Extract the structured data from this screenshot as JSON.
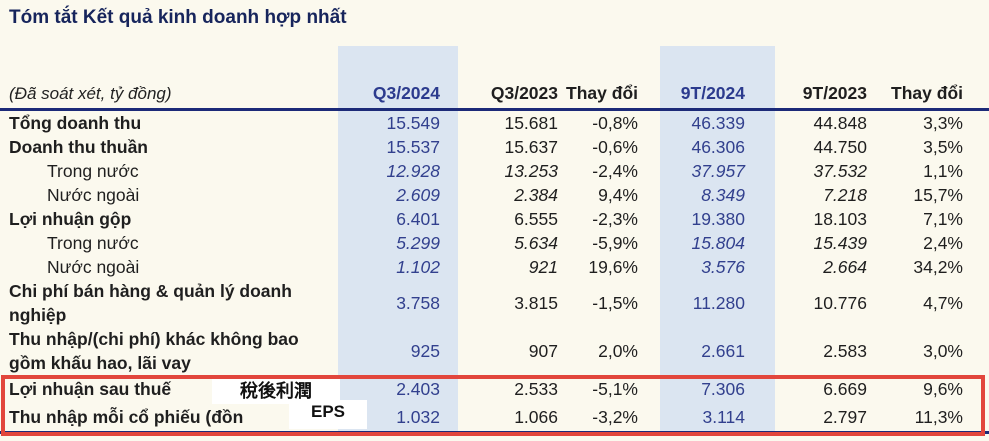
{
  "title": "Tóm tắt Kết quả kinh doanh hợp nhất",
  "colors": {
    "page_background": "#fbf9ee",
    "title_navy": "#17255c",
    "value_blue": "#32408e",
    "column_highlight": "#dbe5f1",
    "header_rule_navy": "#1c2a78",
    "annotation_red": "#e2463c",
    "text_black": "#1f1f1f"
  },
  "table": {
    "unit_label": "(Đã soát xét, tỷ đồng)",
    "columns": [
      "Q3/2024",
      "Q3/2023",
      "Thay đổi",
      "9T/2024",
      "9T/2023",
      "Thay đổi"
    ],
    "highlighted_columns": [
      "Q3/2024",
      "9T/2024"
    ],
    "rows": [
      {
        "label": "Tổng doanh thu",
        "style": "bold",
        "values": [
          "15.549",
          "15.681",
          "-0,8%",
          "46.339",
          "44.848",
          "3,3%"
        ]
      },
      {
        "label": "Doanh thu thuần",
        "style": "bold",
        "values": [
          "15.537",
          "15.637",
          "-0,6%",
          "46.306",
          "44.750",
          "3,5%"
        ]
      },
      {
        "label": "Trong nước",
        "style": "sub",
        "values": [
          "12.928",
          "13.253",
          "-2,4%",
          "37.957",
          "37.532",
          "1,1%"
        ]
      },
      {
        "label": "Nước ngoài",
        "style": "sub",
        "values": [
          "2.609",
          "2.384",
          "9,4%",
          "8.349",
          "7.218",
          "15,7%"
        ]
      },
      {
        "label": "Lợi nhuận gộp",
        "style": "bold",
        "values": [
          "6.401",
          "6.555",
          "-2,3%",
          "19.380",
          "18.103",
          "7,1%"
        ]
      },
      {
        "label": "Trong nước",
        "style": "sub",
        "values": [
          "5.299",
          "5.634",
          "-5,9%",
          "15.804",
          "15.439",
          "2,4%"
        ]
      },
      {
        "label": "Nước ngoài",
        "style": "sub",
        "values": [
          "1.102",
          "921",
          "19,6%",
          "3.576",
          "2.664",
          "34,2%"
        ]
      },
      {
        "label": "Chi phí bán hàng & quản lý doanh nghiệp",
        "style": "bold",
        "values": [
          "3.758",
          "3.815",
          "-1,5%",
          "11.280",
          "10.776",
          "4,7%"
        ]
      },
      {
        "label": "Thu nhập/(chi phí) khác không bao gồm khấu hao, lãi vay",
        "style": "bold",
        "values": [
          "925",
          "907",
          "2,0%",
          "2.661",
          "2.583",
          "3,0%"
        ]
      },
      {
        "label": "Lợi nhuận sau thuế",
        "style": "bold boxed",
        "values": [
          "2.403",
          "2.533",
          "-5,1%",
          "7.306",
          "6.669",
          "9,6%"
        ]
      },
      {
        "label": "Thu nhập mỗi cổ phiếu (đồn",
        "style": "bold boxed last",
        "values": [
          "1.032",
          "1.066",
          "-3,2%",
          "3.114",
          "2.797",
          "11,3%"
        ]
      }
    ]
  },
  "annotations": {
    "after_tax_profit_cn": "稅後利潤",
    "eps_label": "EPS"
  }
}
